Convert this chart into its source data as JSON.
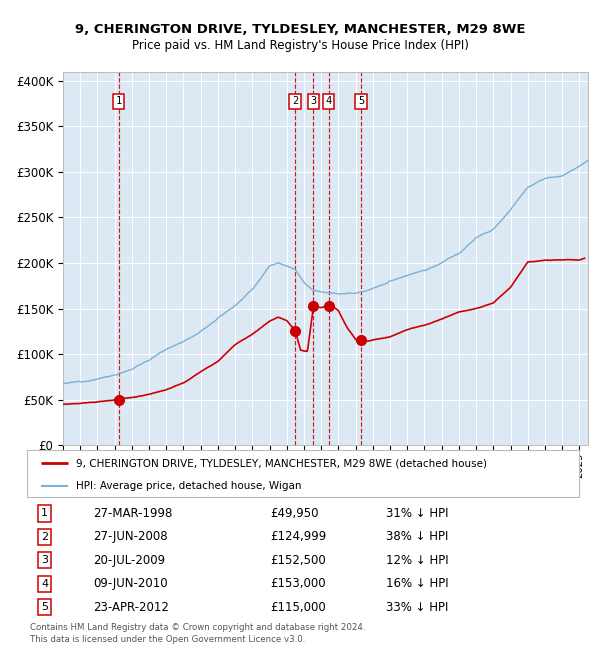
{
  "title1": "9, CHERINGTON DRIVE, TYLDESLEY, MANCHESTER, M29 8WE",
  "title2": "Price paid vs. HM Land Registry's House Price Index (HPI)",
  "plot_bg_color": "#dce9f5",
  "hpi_color": "#7bafd4",
  "price_color": "#cc0000",
  "vline_color": "#cc0000",
  "ylabel_ticks": [
    "£0",
    "£50K",
    "£100K",
    "£150K",
    "£200K",
    "£250K",
    "£300K",
    "£350K",
    "£400K"
  ],
  "ytick_values": [
    0,
    50000,
    100000,
    150000,
    200000,
    250000,
    300000,
    350000,
    400000
  ],
  "sales": [
    {
      "num": 1,
      "date_x": 1998.23,
      "price": 49950
    },
    {
      "num": 2,
      "date_x": 2008.49,
      "price": 124999
    },
    {
      "num": 3,
      "date_x": 2009.55,
      "price": 152500
    },
    {
      "num": 4,
      "date_x": 2010.44,
      "price": 153000
    },
    {
      "num": 5,
      "date_x": 2012.31,
      "price": 115000
    }
  ],
  "legend_label1": "9, CHERINGTON DRIVE, TYLDESLEY, MANCHESTER, M29 8WE (detached house)",
  "legend_label2": "HPI: Average price, detached house, Wigan",
  "table_rows": [
    {
      "num": "1",
      "date": "27-MAR-1998",
      "price": "£49,950",
      "pct": "31% ↓ HPI"
    },
    {
      "num": "2",
      "date": "27-JUN-2008",
      "price": "£124,999",
      "pct": "38% ↓ HPI"
    },
    {
      "num": "3",
      "date": "20-JUL-2009",
      "price": "£152,500",
      "pct": "12% ↓ HPI"
    },
    {
      "num": "4",
      "date": "09-JUN-2010",
      "price": "£153,000",
      "pct": "16% ↓ HPI"
    },
    {
      "num": "5",
      "date": "23-APR-2012",
      "price": "£115,000",
      "pct": "33% ↓ HPI"
    }
  ],
  "footer1": "Contains HM Land Registry data © Crown copyright and database right 2024.",
  "footer2": "This data is licensed under the Open Government Licence v3.0.",
  "xlim": [
    1995.0,
    2025.5
  ],
  "ylim": [
    0,
    410000
  ]
}
